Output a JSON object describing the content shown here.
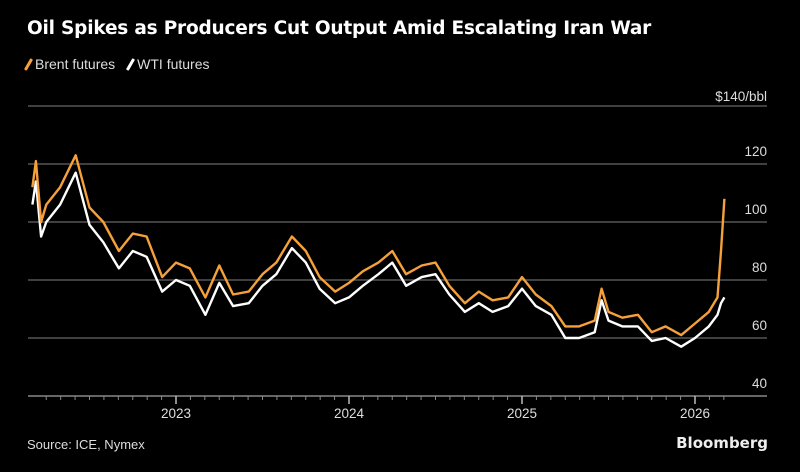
{
  "chart_data": {
    "type": "line",
    "title": "Oil Spikes as Producers Cut Output Amid Escalating Iran War",
    "ylabel_unit": "$140/bbl",
    "ylim": [
      40,
      140
    ],
    "yticks": [
      40,
      60,
      80,
      100,
      120
    ],
    "xticks": [
      {
        "label": "2023",
        "value": 2023
      },
      {
        "label": "2024",
        "value": 2024
      },
      {
        "label": "2025",
        "value": 2025
      },
      {
        "label": "2026",
        "value": 2026
      }
    ],
    "xlim": [
      2022.17,
      2026.17
    ],
    "legend_placement": "top-left",
    "grid": true,
    "x": [
      2022.17,
      2022.19,
      2022.22,
      2022.25,
      2022.33,
      2022.42,
      2022.5,
      2022.58,
      2022.67,
      2022.75,
      2022.83,
      2022.92,
      2023.0,
      2023.08,
      2023.17,
      2023.25,
      2023.33,
      2023.42,
      2023.5,
      2023.58,
      2023.67,
      2023.75,
      2023.83,
      2023.92,
      2024.0,
      2024.08,
      2024.17,
      2024.25,
      2024.33,
      2024.42,
      2024.5,
      2024.58,
      2024.67,
      2024.75,
      2024.83,
      2024.92,
      2025.0,
      2025.08,
      2025.17,
      2025.25,
      2025.33,
      2025.42,
      2025.46,
      2025.5,
      2025.58,
      2025.67,
      2025.75,
      2025.83,
      2025.92,
      2026.0,
      2026.08,
      2026.13,
      2026.15,
      2026.17
    ],
    "series": [
      {
        "name": "Brent futures",
        "color": "#f5a03a",
        "values": [
          112,
          121,
          100,
          106,
          112,
          123,
          105,
          100,
          90,
          96,
          95,
          81,
          86,
          84,
          74,
          85,
          75,
          76,
          82,
          86,
          95,
          90,
          81,
          76,
          79,
          83,
          86,
          90,
          82,
          85,
          86,
          78,
          72,
          76,
          73,
          74,
          81,
          75,
          71,
          64,
          64,
          66,
          77,
          69,
          67,
          68,
          62,
          64,
          61,
          65,
          69,
          74,
          90,
          108
        ]
      },
      {
        "name": "WTI futures",
        "color": "#ffffff",
        "values": [
          106,
          114,
          95,
          100,
          106,
          117,
          99,
          93,
          84,
          90,
          88,
          76,
          80,
          78,
          68,
          79,
          71,
          72,
          78,
          82,
          91,
          86,
          77,
          72,
          74,
          78,
          82,
          86,
          78,
          81,
          82,
          75,
          69,
          72,
          69,
          71,
          77,
          71,
          68,
          60,
          60,
          62,
          73,
          66,
          64,
          64,
          59,
          60,
          57,
          60,
          64,
          68,
          72,
          74
        ]
      }
    ]
  },
  "legend": {
    "brent": "Brent futures",
    "wti": "WTI futures"
  },
  "source": "Source: ICE, Nymex",
  "brand": "Bloomberg"
}
